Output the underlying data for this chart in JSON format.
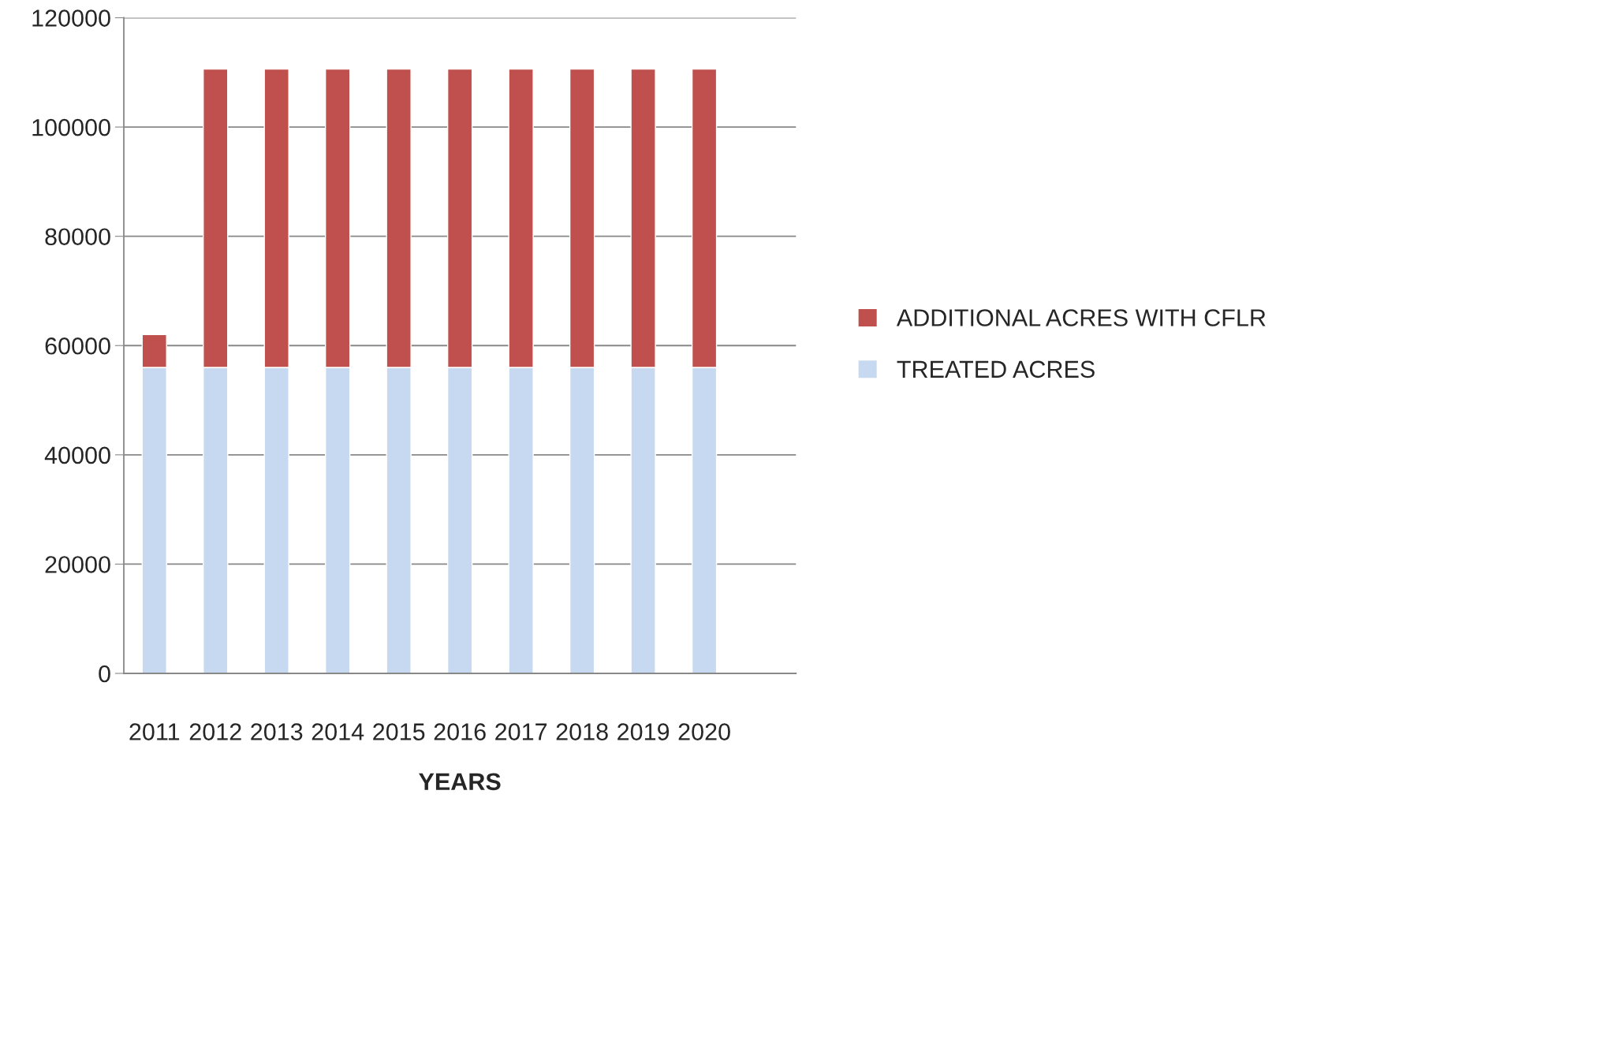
{
  "chart_data": {
    "type": "bar",
    "stacked": true,
    "xlabel": "YEARS",
    "categories": [
      "2011",
      "2012",
      "2013",
      "2014",
      "2015",
      "2016",
      "2017",
      "2018",
      "2019",
      "2020",
      null
    ],
    "series": [
      {
        "name": "TREATED ACRES",
        "color": "#c6d9f1",
        "values": [
          56000,
          56000,
          56000,
          56000,
          56000,
          56000,
          56000,
          56000,
          56000,
          56000,
          null
        ]
      },
      {
        "name": "ADDITIONAL ACRES WITH CFLR",
        "color": "#c0504d",
        "values": [
          6000,
          54600,
          54600,
          54600,
          54600,
          54600,
          54600,
          54600,
          54600,
          54600,
          null
        ]
      }
    ],
    "ylim": [
      0,
      120000
    ],
    "yticks": [
      0,
      20000,
      40000,
      60000,
      80000,
      100000,
      120000
    ],
    "grid": "y",
    "legend": "right"
  }
}
